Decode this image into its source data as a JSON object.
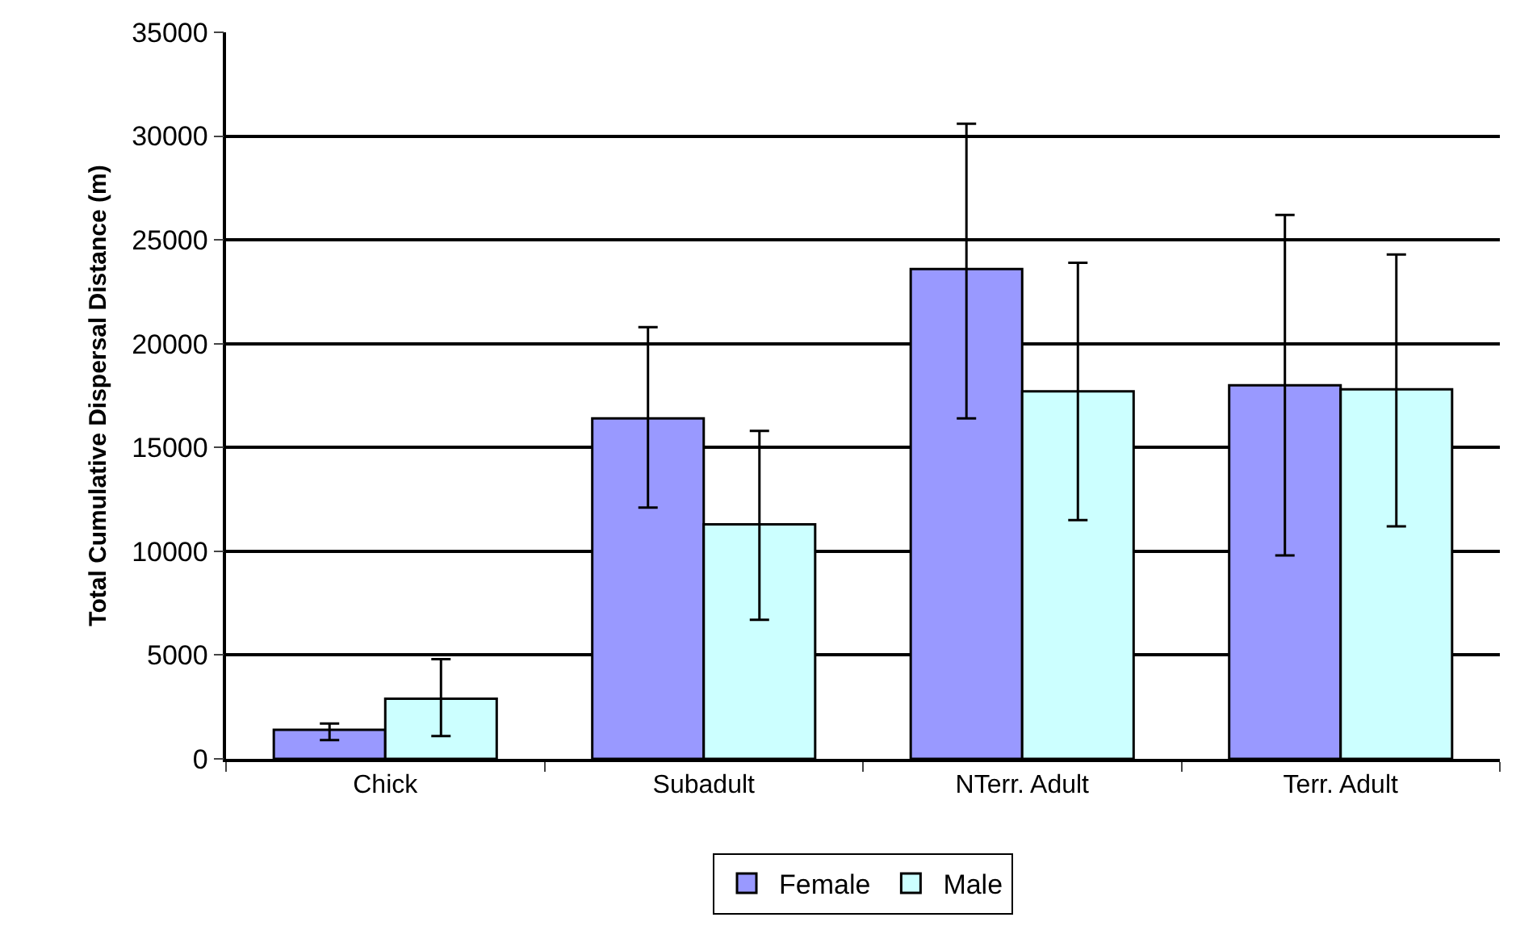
{
  "chart_data": {
    "type": "bar",
    "ylabel": "Total Cumulative Dispersal Distance (m)",
    "categories": [
      "Chick",
      "Subadult",
      "NTerr. Adult",
      "Terr. Adult"
    ],
    "series": [
      {
        "name": "Female",
        "color": "#9999ff",
        "values": [
          1400,
          16400,
          23600,
          18000
        ],
        "errors": [
          [
            900,
            1700
          ],
          [
            12100,
            20800
          ],
          [
            16400,
            30600
          ],
          [
            9800,
            26200
          ]
        ]
      },
      {
        "name": "Male",
        "color": "#ccffff",
        "values": [
          2900,
          11300,
          17700,
          17800
        ],
        "errors": [
          [
            1100,
            4800
          ],
          [
            6700,
            15800
          ],
          [
            11500,
            23900
          ],
          [
            11200,
            24300
          ]
        ]
      }
    ],
    "ylim": [
      0,
      35000
    ],
    "yticks": [
      0,
      5000,
      10000,
      15000,
      20000,
      25000,
      30000,
      35000
    ],
    "grid": "y",
    "legend": "bottom"
  }
}
